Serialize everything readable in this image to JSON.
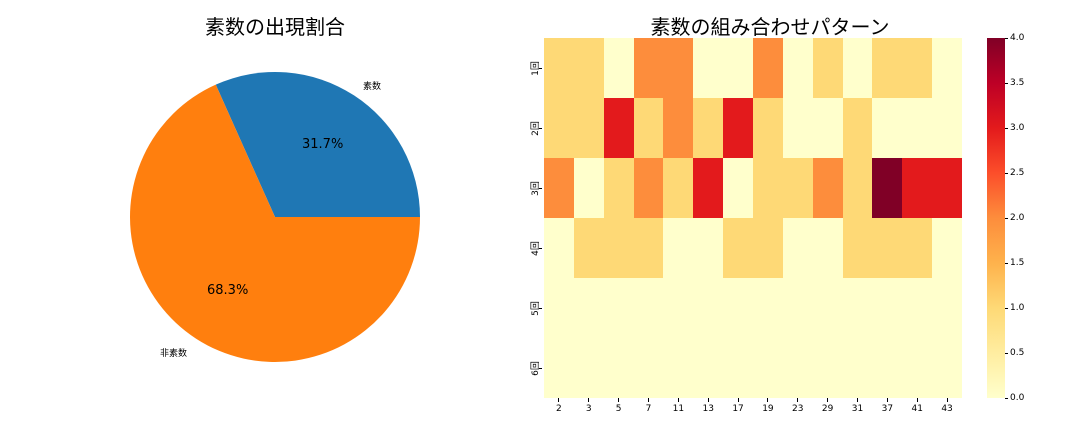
{
  "pie": {
    "title": "素数の出現割合",
    "labels": [
      "素数",
      "非素数"
    ],
    "percent_labels": [
      "31.7%",
      "68.3%"
    ],
    "colors": [
      "#1f77b4",
      "#ff7f0e"
    ]
  },
  "heatmap": {
    "title": "素数の組み合わせパターン",
    "row_labels": [
      "1回",
      "2回",
      "3回",
      "4回",
      "5回",
      "6回"
    ],
    "col_labels": [
      "2",
      "3",
      "5",
      "7",
      "11",
      "13",
      "17",
      "19",
      "23",
      "29",
      "31",
      "37",
      "41",
      "43"
    ],
    "colorbar_ticks": [
      "4.0",
      "3.5",
      "3.0",
      "2.5",
      "2.0",
      "1.5",
      "1.0",
      "0.5",
      "0.0"
    ],
    "color_scale": {
      "0": "#ffffcc",
      "1": "#fed976",
      "2": "#fd8d3c",
      "3": "#e31a1c",
      "4": "#800026"
    }
  },
  "chart_data": [
    {
      "type": "pie",
      "title": "素数の出現割合",
      "categories": [
        "素数",
        "非素数"
      ],
      "values": [
        31.7,
        68.3
      ],
      "colors": [
        "#1f77b4",
        "#ff7f0e"
      ]
    },
    {
      "type": "heatmap",
      "title": "素数の組み合わせパターン",
      "x": [
        "2",
        "3",
        "5",
        "7",
        "11",
        "13",
        "17",
        "19",
        "23",
        "29",
        "31",
        "37",
        "41",
        "43"
      ],
      "y": [
        "1回",
        "2回",
        "3回",
        "4回",
        "5回",
        "6回"
      ],
      "values": [
        [
          1,
          1,
          0,
          2,
          2,
          0,
          0,
          2,
          0,
          1,
          0,
          1,
          1,
          0
        ],
        [
          1,
          1,
          3,
          1,
          2,
          1,
          3,
          1,
          0,
          0,
          1,
          0,
          0,
          0
        ],
        [
          2,
          0,
          1,
          2,
          1,
          3,
          0,
          1,
          1,
          2,
          1,
          4,
          3,
          3
        ],
        [
          0,
          1,
          1,
          1,
          0,
          0,
          1,
          1,
          0,
          0,
          1,
          1,
          1,
          0
        ],
        [
          0,
          0,
          0,
          0,
          0,
          0,
          0,
          0,
          0,
          0,
          0,
          0,
          0,
          0
        ],
        [
          0,
          0,
          0,
          0,
          0,
          0,
          0,
          0,
          0,
          0,
          0,
          0,
          0,
          0
        ]
      ],
      "colorbar_range": [
        0.0,
        4.0
      ],
      "colormap": "YlOrRd"
    }
  ]
}
